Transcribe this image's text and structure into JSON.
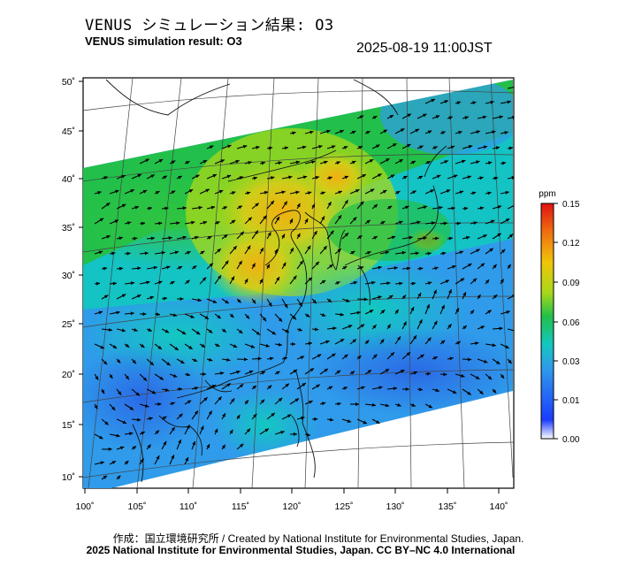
{
  "header": {
    "title_jp": "VENUS シミュレーション結果: O3",
    "title_en": "VENUS simulation result: O3",
    "datetime": "2025-08-19 11:00JST"
  },
  "map": {
    "lat_labels": [
      "50˚",
      "45˚",
      "40˚",
      "35˚",
      "30˚",
      "25˚",
      "20˚",
      "15˚",
      "10˚"
    ],
    "lon_labels": [
      "100˚",
      "105˚",
      "110˚",
      "115˚",
      "120˚",
      "125˚",
      "130˚",
      "135˚",
      "140˚"
    ]
  },
  "colorbar": {
    "unit": "ppm",
    "ticks": [
      "0.15",
      "0.12",
      "0.09",
      "0.06",
      "0.03",
      "0.01",
      "0.00"
    ],
    "colors": [
      "#ffffff",
      "#1a3cff",
      "#2f9bea",
      "#12c8c0",
      "#22c04a",
      "#a8d81a",
      "#f0c40a",
      "#f06e10",
      "#e01212"
    ]
  },
  "footer": {
    "credit_line": "作成：国立環境研究所 / Created by National Institute for Environmental Studies, Japan.",
    "copyright_line": "2025 National Institute for Environmental Studies, Japan. CC BY–NC 4.0 International"
  }
}
